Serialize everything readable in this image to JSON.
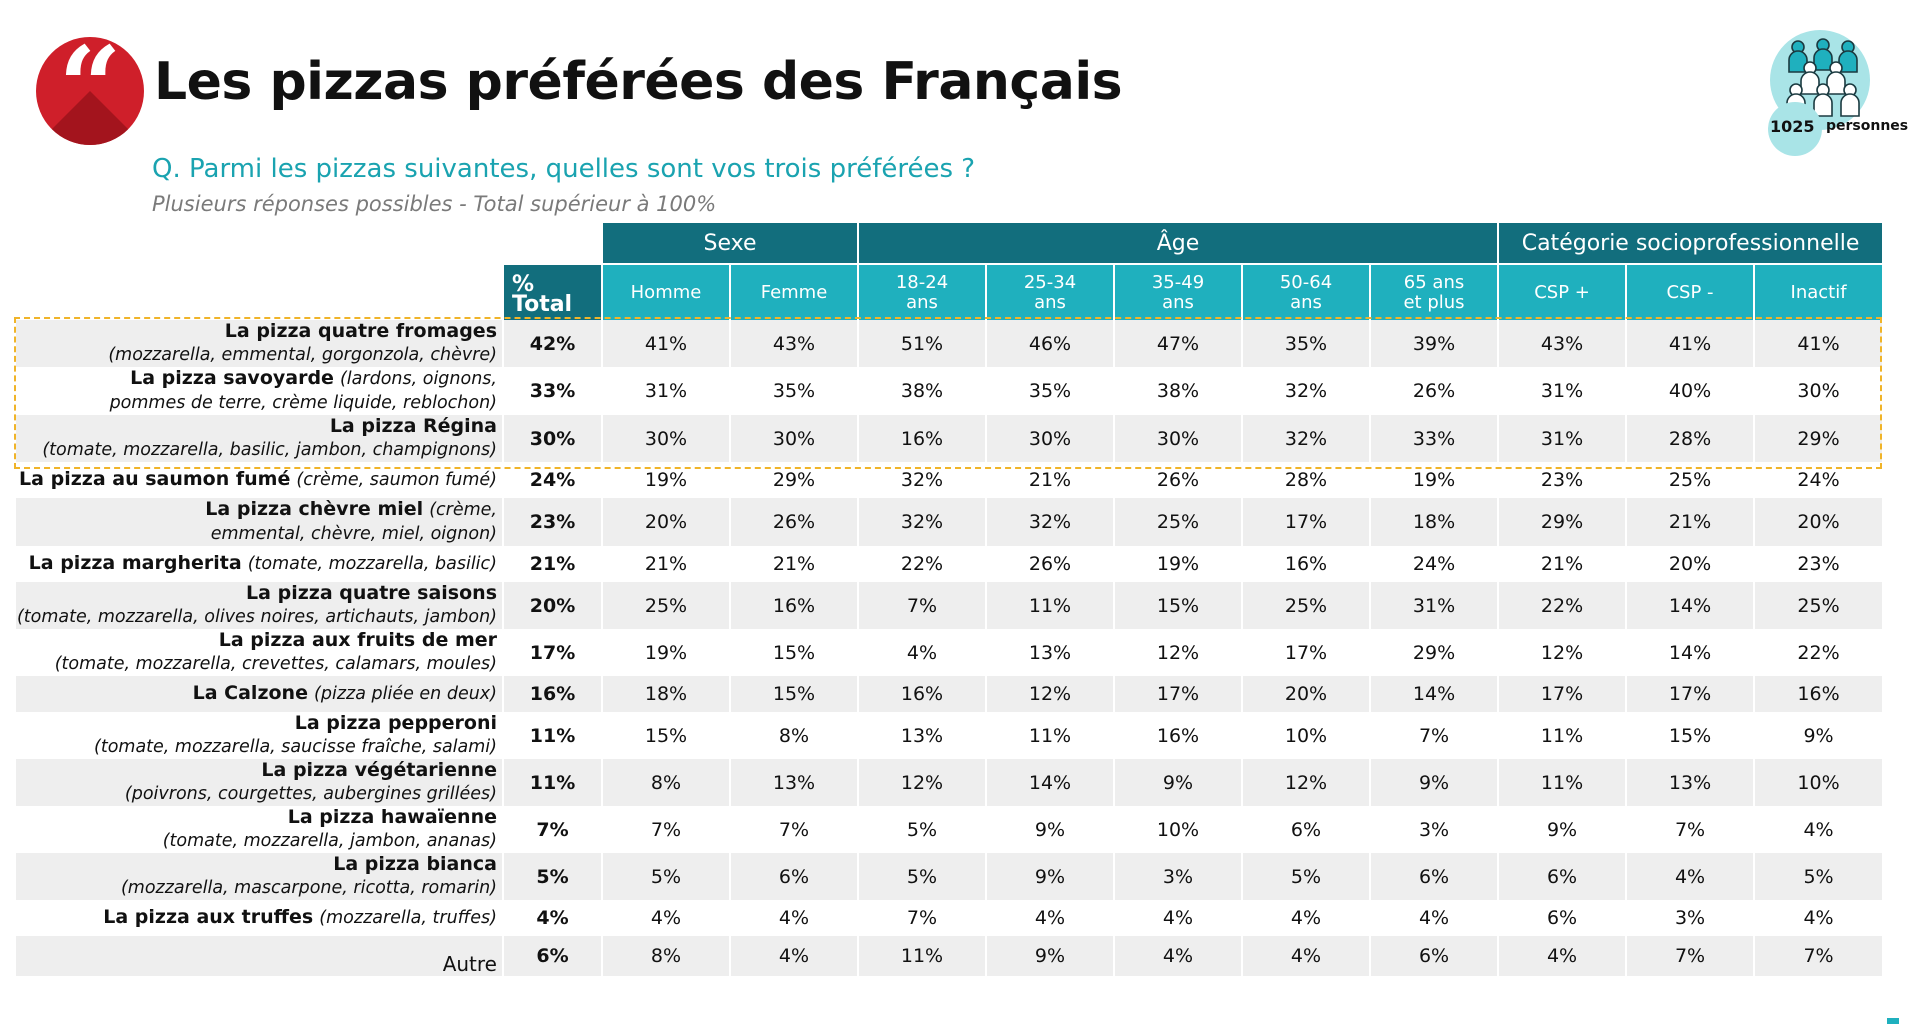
{
  "header": {
    "logo_glyph": "“",
    "title": "Les pizzas préférées des Français",
    "question": "Q. Parmi les pizzas suivantes, quelles sont vos trois préférées ?",
    "note": "Plusieurs réponses possibles - Total supérieur à 100%"
  },
  "panel": {
    "count": "1025",
    "count_label": "personnes",
    "icon": "people-group-icon"
  },
  "colors": {
    "dark_teal": "#126e7d",
    "teal": "#1fb0be",
    "logo_red": "#cf1f2a",
    "highlight": "#f0b429",
    "question": "#1aa3b0"
  },
  "chart_data": {
    "type": "table",
    "groups": [
      {
        "label": "Sexe",
        "span": 2
      },
      {
        "label": "Âge",
        "span": 5
      },
      {
        "label": "Catégorie socioprofessionnelle",
        "span": 3
      }
    ],
    "columns": [
      {
        "l1": "% Total",
        "l2": ""
      },
      {
        "l1": "Homme",
        "l2": ""
      },
      {
        "l1": "Femme",
        "l2": ""
      },
      {
        "l1": "18-24",
        "l2": "ans"
      },
      {
        "l1": "25-34",
        "l2": "ans"
      },
      {
        "l1": "35-49",
        "l2": "ans"
      },
      {
        "l1": "50-64",
        "l2": "ans"
      },
      {
        "l1": "65 ans",
        "l2": "et plus"
      },
      {
        "l1": "CSP +",
        "l2": ""
      },
      {
        "l1": "CSP -",
        "l2": ""
      },
      {
        "l1": "Inactif",
        "l2": ""
      }
    ],
    "rows": [
      {
        "name": "La pizza quatre fromages",
        "sep": "",
        "detail": "(mozzarella, emmental, gorgonzola, chèvre)",
        "layout": "2",
        "highlight": true,
        "values": [
          "42%",
          "41%",
          "43%",
          "51%",
          "46%",
          "47%",
          "35%",
          "39%",
          "43%",
          "41%",
          "41%"
        ]
      },
      {
        "name": "La pizza savoyarde",
        "sep": " ",
        "detail": "(lardons, oignons, pommes de terre, crème liquide, reblochon)",
        "layout": "wrap",
        "highlight": true,
        "values": [
          "33%",
          "31%",
          "35%",
          "38%",
          "35%",
          "38%",
          "32%",
          "26%",
          "31%",
          "40%",
          "30%"
        ]
      },
      {
        "name": "La pizza Régina",
        "sep": "",
        "detail": "(tomate, mozzarella, basilic, jambon, champignons)",
        "layout": "2",
        "highlight": true,
        "values": [
          "30%",
          "30%",
          "30%",
          "16%",
          "30%",
          "30%",
          "32%",
          "33%",
          "31%",
          "28%",
          "29%"
        ]
      },
      {
        "name": "La pizza au saumon fumé",
        "sep": " ",
        "detail": "(crème, saumon fumé)",
        "layout": "1",
        "highlight": false,
        "values": [
          "24%",
          "19%",
          "29%",
          "32%",
          "21%",
          "26%",
          "28%",
          "19%",
          "23%",
          "25%",
          "24%"
        ]
      },
      {
        "name": "La pizza chèvre miel",
        "sep": " ",
        "detail": "(crème, emmental, chèvre, miel, oignon)",
        "layout": "wrap",
        "highlight": false,
        "values": [
          "23%",
          "20%",
          "26%",
          "32%",
          "32%",
          "25%",
          "17%",
          "18%",
          "29%",
          "21%",
          "20%"
        ]
      },
      {
        "name": "La pizza margherita",
        "sep": " ",
        "detail": "(tomate, mozzarella, basilic)",
        "layout": "1",
        "highlight": false,
        "values": [
          "21%",
          "21%",
          "21%",
          "22%",
          "26%",
          "19%",
          "16%",
          "24%",
          "21%",
          "20%",
          "23%"
        ]
      },
      {
        "name": "La pizza quatre saisons",
        "sep": "",
        "detail": "(tomate, mozzarella, olives noires, artichauts, jambon)",
        "layout": "2",
        "highlight": false,
        "values": [
          "20%",
          "25%",
          "16%",
          "7%",
          "11%",
          "15%",
          "25%",
          "31%",
          "22%",
          "14%",
          "25%"
        ]
      },
      {
        "name": "La pizza aux fruits de mer",
        "sep": "",
        "detail": "(tomate, mozzarella, crevettes, calamars, moules)",
        "layout": "2",
        "highlight": false,
        "values": [
          "17%",
          "19%",
          "15%",
          "4%",
          "13%",
          "12%",
          "17%",
          "29%",
          "12%",
          "14%",
          "22%"
        ]
      },
      {
        "name": "La Calzone",
        "sep": " ",
        "detail": "(pizza pliée en deux)",
        "layout": "1",
        "highlight": false,
        "values": [
          "16%",
          "18%",
          "15%",
          "16%",
          "12%",
          "17%",
          "20%",
          "14%",
          "17%",
          "17%",
          "16%"
        ]
      },
      {
        "name": "La pizza pepperoni",
        "sep": "",
        "detail": "(tomate, mozzarella, saucisse fraîche, salami)",
        "layout": "2",
        "highlight": false,
        "values": [
          "11%",
          "15%",
          "8%",
          "13%",
          "11%",
          "16%",
          "10%",
          "7%",
          "11%",
          "15%",
          "9%"
        ]
      },
      {
        "name": "La pizza végétarienne",
        "sep": "",
        "detail": "(poivrons, courgettes, aubergines grillées)",
        "layout": "2",
        "highlight": false,
        "values": [
          "11%",
          "8%",
          "13%",
          "12%",
          "14%",
          "9%",
          "12%",
          "9%",
          "11%",
          "13%",
          "10%"
        ]
      },
      {
        "name": "La pizza hawaïenne",
        "sep": "",
        "detail": "(tomate, mozzarella, jambon, ananas)",
        "layout": "2",
        "highlight": false,
        "values": [
          "7%",
          "7%",
          "7%",
          "5%",
          "9%",
          "10%",
          "6%",
          "3%",
          "9%",
          "7%",
          "4%"
        ]
      },
      {
        "name": "La pizza bianca",
        "sep": "",
        "detail": "(mozzarella, mascarpone, ricotta, romarin)",
        "layout": "2",
        "highlight": false,
        "values": [
          "5%",
          "5%",
          "6%",
          "5%",
          "9%",
          "3%",
          "5%",
          "6%",
          "6%",
          "4%",
          "5%"
        ]
      },
      {
        "name": "La pizza aux truffes",
        "sep": " ",
        "detail": "(mozzarella, truffes)",
        "layout": "1",
        "highlight": false,
        "values": [
          "4%",
          "4%",
          "4%",
          "7%",
          "4%",
          "4%",
          "4%",
          "4%",
          "6%",
          "3%",
          "4%"
        ]
      },
      {
        "name": "Autre",
        "sep": "",
        "detail": "",
        "layout": "plain",
        "highlight": false,
        "values": [
          "6%",
          "8%",
          "4%",
          "11%",
          "9%",
          "4%",
          "4%",
          "6%",
          "4%",
          "7%",
          "7%"
        ]
      }
    ]
  }
}
